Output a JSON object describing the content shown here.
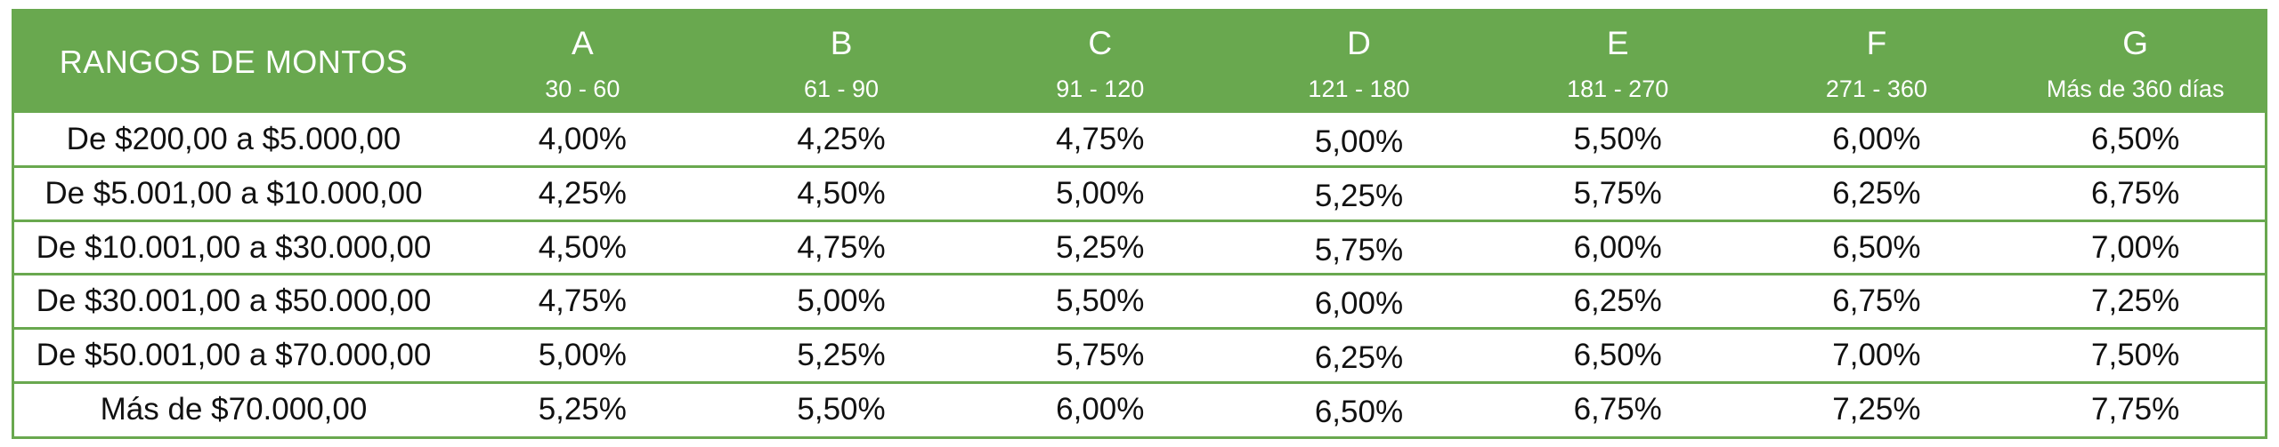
{
  "table": {
    "range_header": "RANGOS DE MONTOS",
    "columns": [
      {
        "letter": "A",
        "days": "30 - 60"
      },
      {
        "letter": "B",
        "days": "61 - 90"
      },
      {
        "letter": "C",
        "days": "91 - 120"
      },
      {
        "letter": "D",
        "days": "121 - 180"
      },
      {
        "letter": "E",
        "days": "181 - 270"
      },
      {
        "letter": "F",
        "days": "271 - 360"
      },
      {
        "letter": "G",
        "days": "Más de 360 días"
      }
    ],
    "rows": [
      {
        "range": "De $200,00 a $5.000,00",
        "rates": [
          "4,00%",
          "4,25%",
          "4,75%",
          "5,00%",
          "5,50%",
          "6,00%",
          "6,50%"
        ]
      },
      {
        "range": "De $5.001,00 a $10.000,00",
        "rates": [
          "4,25%",
          "4,50%",
          "5,00%",
          "5,25%",
          "5,75%",
          "6,25%",
          "6,75%"
        ]
      },
      {
        "range": "De $10.001,00 a $30.000,00",
        "rates": [
          "4,50%",
          "4,75%",
          "5,25%",
          "5,75%",
          "6,00%",
          "6,50%",
          "7,00%"
        ]
      },
      {
        "range": "De $30.001,00 a $50.000,00",
        "rates": [
          "4,75%",
          "5,00%",
          "5,50%",
          "6,00%",
          "6,25%",
          "6,75%",
          "7,25%"
        ]
      },
      {
        "range": "De $50.001,00 a $70.000,00",
        "rates": [
          "5,00%",
          "5,25%",
          "5,75%",
          "6,25%",
          "6,50%",
          "7,00%",
          "7,50%"
        ]
      },
      {
        "range": "Más de $70.000,00",
        "rates": [
          "5,25%",
          "5,50%",
          "6,00%",
          "6,50%",
          "6,75%",
          "7,25%",
          "7,75%"
        ]
      }
    ]
  },
  "colors": {
    "header_background": "#69a84f",
    "header_text": "#ffffff",
    "border": "#69a84f"
  }
}
